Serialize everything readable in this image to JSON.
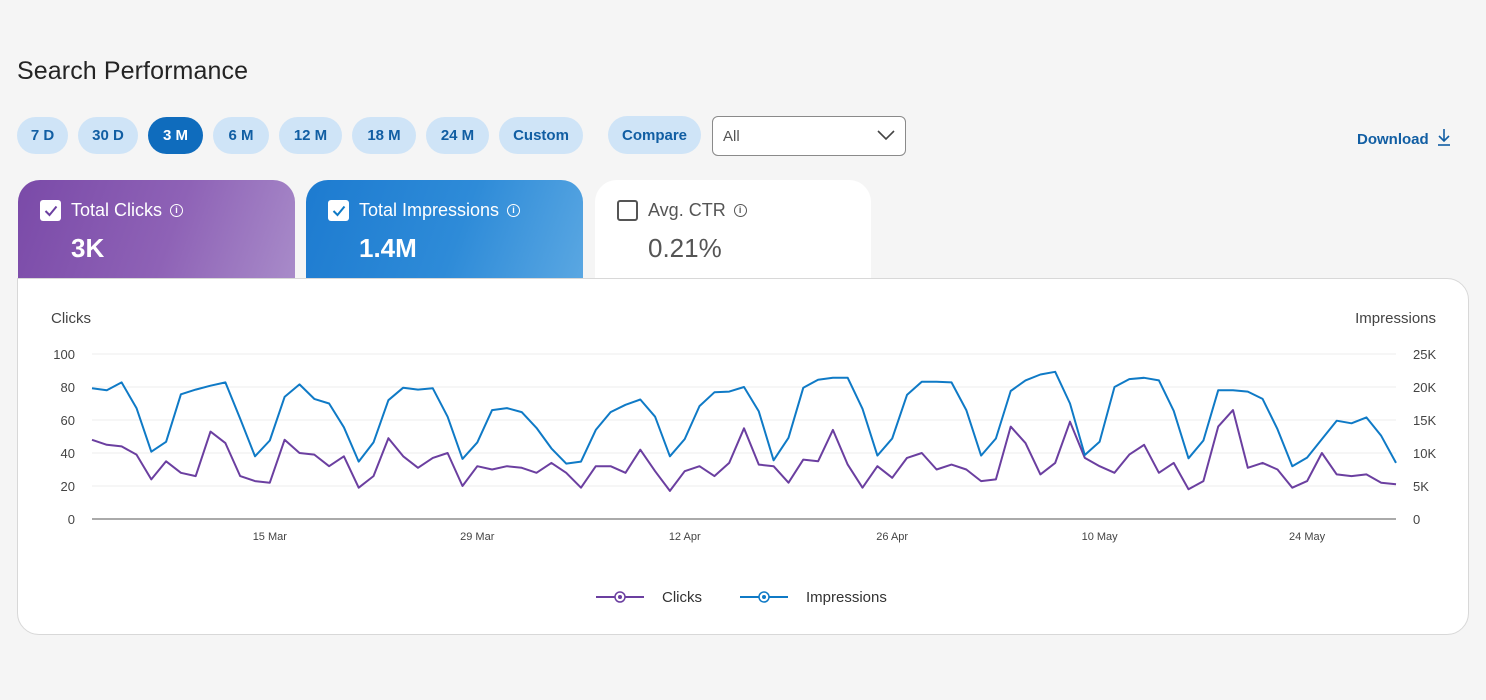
{
  "page": {
    "title": "Search Performance"
  },
  "ranges": [
    "7 D",
    "30 D",
    "3 M",
    "6 M",
    "12 M",
    "18 M",
    "24 M",
    "Custom"
  ],
  "active_range": "3 M",
  "compare": {
    "label": "Compare"
  },
  "filter": {
    "selected": "All"
  },
  "download": {
    "label": "Download"
  },
  "cards": {
    "clicks": {
      "label": "Total Clicks",
      "value": "3K",
      "checked": true
    },
    "impressions": {
      "label": "Total Impressions",
      "value": "1.4M",
      "checked": true
    },
    "ctr": {
      "label": "Avg. CTR",
      "value": "0.21%",
      "checked": false
    }
  },
  "colors": {
    "clicks": "#6b3fa0",
    "impressions": "#0f7ac6",
    "accent": "#0f6cbd",
    "pill_bg": "#cfe4f7"
  },
  "chart_data": {
    "type": "line",
    "left_axis_title": "Clicks",
    "right_axis_title": "Impressions",
    "left_ticks": [
      "0",
      "20",
      "40",
      "60",
      "80",
      "100"
    ],
    "right_ticks": [
      "0",
      "5K",
      "10K",
      "15K",
      "20K",
      "25K"
    ],
    "ylim_left": [
      0,
      100
    ],
    "ylim_right": [
      0,
      25000
    ],
    "x_tick_labels": [
      "15 Mar",
      "29 Mar",
      "12 Apr",
      "26 Apr",
      "10 May",
      "24 May"
    ],
    "x_tick_index": [
      12,
      26,
      40,
      54,
      68,
      82
    ],
    "grid": true,
    "legend_position": "bottom",
    "series": [
      {
        "name": "Clicks",
        "axis": "left",
        "values": [
          48,
          45,
          44,
          39,
          24,
          35,
          28,
          26,
          53,
          46,
          26,
          23,
          22,
          48,
          40,
          39,
          32,
          38,
          19,
          26,
          49,
          38,
          31,
          37,
          40,
          20,
          32,
          30,
          32,
          31,
          28,
          34,
          28,
          19,
          32,
          32,
          28,
          42,
          29,
          17,
          29,
          32,
          26,
          34,
          55,
          33,
          32,
          22,
          36,
          35,
          54,
          33,
          19,
          32,
          25,
          37,
          40,
          30,
          33,
          30,
          23,
          24,
          56,
          46,
          27,
          34,
          59,
          37,
          32,
          28,
          39,
          45,
          28,
          34,
          18,
          23,
          56,
          66,
          31,
          34,
          30,
          19,
          23,
          40,
          27,
          26,
          27,
          22,
          21
        ]
      },
      {
        "name": "Impressions",
        "axis": "right",
        "values": [
          19800,
          19500,
          20700,
          16800,
          10200,
          11700,
          18900,
          19600,
          20200,
          20700,
          15200,
          9500,
          11900,
          18500,
          20400,
          18200,
          17500,
          13900,
          8700,
          11600,
          18000,
          19900,
          19600,
          19800,
          15500,
          9100,
          11600,
          16500,
          16800,
          16200,
          13800,
          10700,
          8400,
          8700,
          13500,
          16200,
          17300,
          18100,
          15500,
          9500,
          12100,
          17100,
          19200,
          19300,
          20000,
          16300,
          8900,
          12300,
          19900,
          21100,
          21400,
          21400,
          16700,
          9600,
          12200,
          18800,
          20800,
          20800,
          20700,
          16500,
          9600,
          12200,
          19400,
          21000,
          21900,
          22300,
          17500,
          9700,
          11700,
          20000,
          21200,
          21400,
          21000,
          16400,
          9200,
          11900,
          19500,
          19500,
          19300,
          18200,
          13600,
          8000,
          9300,
          12100,
          14900,
          14500,
          15400,
          12600,
          8500
        ]
      }
    ]
  }
}
